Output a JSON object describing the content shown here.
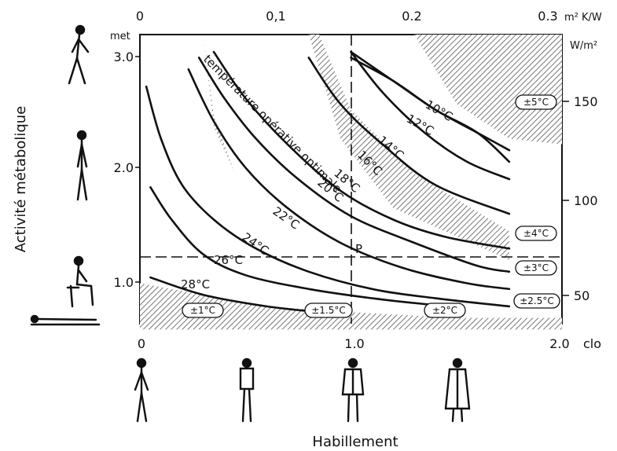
{
  "chart_data": {
    "type": "line",
    "title": "",
    "xlabel": "Habillement",
    "ylabel": "Activité métabolique",
    "x_bottom": {
      "unit": "clo",
      "range": [
        0,
        2.0
      ],
      "ticks": [
        "0",
        "1.0",
        "2.0"
      ]
    },
    "x_top": {
      "unit": "m² K/W",
      "range": [
        0,
        0.31
      ],
      "ticks": [
        "0",
        "0,1",
        "0.2",
        "0.3"
      ]
    },
    "y_left": {
      "unit": "met",
      "range": [
        0.7,
        3.2
      ],
      "ticks": [
        "1.0",
        "2.0",
        "3.0"
      ]
    },
    "y_right": {
      "unit": "W/m²",
      "ticks": [
        "50",
        "100",
        "150"
      ]
    },
    "curve_caption": "température opérative optimale",
    "reference_point": {
      "label": "P",
      "x": 1.0,
      "y": 1.2
    },
    "series": [
      {
        "name": "28°C",
        "x": [
          0.05,
          0.3,
          0.6,
          0.85
        ],
        "y": [
          1.1,
          0.95,
          0.85,
          0.8
        ]
      },
      {
        "name": "26°C",
        "x": [
          0.05,
          0.15,
          0.3,
          0.5,
          0.8,
          1.1,
          1.35,
          1.5
        ],
        "y": [
          1.88,
          1.6,
          1.3,
          1.12,
          1.0,
          0.92,
          0.87,
          0.85
        ]
      },
      {
        "name": "24°C",
        "x": [
          0.03,
          0.1,
          0.2,
          0.35,
          0.55,
          0.8,
          1.1,
          1.4,
          1.75
        ],
        "y": [
          2.75,
          2.3,
          1.9,
          1.6,
          1.35,
          1.15,
          1.0,
          0.92,
          0.85
        ]
      },
      {
        "name": "22°C",
        "x": [
          0.23,
          0.35,
          0.5,
          0.7,
          0.95,
          1.25,
          1.55,
          1.75
        ],
        "y": [
          2.9,
          2.45,
          2.05,
          1.7,
          1.4,
          1.18,
          1.05,
          1.0
        ]
      },
      {
        "name": "20°C",
        "x": [
          0.28,
          0.4,
          0.55,
          0.75,
          1.0,
          1.3,
          1.6,
          1.75
        ],
        "y": [
          3.0,
          2.65,
          2.3,
          1.95,
          1.63,
          1.4,
          1.2,
          1.15
        ]
      },
      {
        "name": "18°C",
        "x": [
          0.35,
          0.5,
          0.7,
          0.95,
          1.2,
          1.45,
          1.75
        ],
        "y": [
          3.05,
          2.65,
          2.25,
          1.85,
          1.6,
          1.45,
          1.35
        ]
      },
      {
        "name": "16°C",
        "x": [
          0.8,
          0.95,
          1.15,
          1.4,
          1.75
        ],
        "y": [
          3.0,
          2.6,
          2.25,
          1.9,
          1.65
        ]
      },
      {
        "name": "14°C",
        "x": [
          1.0,
          1.15,
          1.35,
          1.55,
          1.75
        ],
        "y": [
          3.05,
          2.7,
          2.35,
          2.1,
          1.95
        ]
      },
      {
        "name": "12°C",
        "x": [
          1.0,
          1.2,
          1.4,
          1.6,
          1.75
        ],
        "y": [
          3.05,
          2.8,
          2.55,
          2.35,
          2.2
        ]
      },
      {
        "name": "10°C",
        "x": [
          1.0,
          1.2,
          1.4,
          1.6,
          1.75
        ],
        "y": [
          3.0,
          2.8,
          2.55,
          2.35,
          2.1
        ]
      }
    ],
    "tolerance_labels": [
      "±5°C",
      "±4°C",
      "±3°C",
      "±2.5°C",
      "±1°C",
      "±1.5°C",
      "±2°C"
    ],
    "tolerance_bands": [
      {
        "x": [
          0.3,
          0.35,
          0.45,
          0.55,
          0.35,
          0.3
        ],
        "y": [
          3.2,
          2.5,
          2.0,
          1.6,
          2.4,
          3.2
        ]
      },
      {
        "x": [
          0.85,
          1.0,
          1.3,
          1.75,
          1.75,
          1.2,
          0.95,
          0.8
        ],
        "y": [
          3.2,
          2.55,
          2.0,
          1.5,
          1.25,
          1.7,
          2.3,
          3.2
        ]
      },
      {
        "x": [
          1.3,
          1.5,
          1.75,
          2.0,
          2.0,
          1.75
        ],
        "y": [
          3.2,
          2.6,
          2.3,
          2.25,
          3.2,
          3.2
        ]
      },
      {
        "x": [
          0.0,
          0.3,
          0.6,
          1.0,
          1.5,
          2.0,
          2.0,
          0.0
        ],
        "y": [
          1.05,
          0.95,
          0.85,
          0.8,
          0.75,
          0.75,
          0.65,
          0.65
        ]
      }
    ]
  }
}
